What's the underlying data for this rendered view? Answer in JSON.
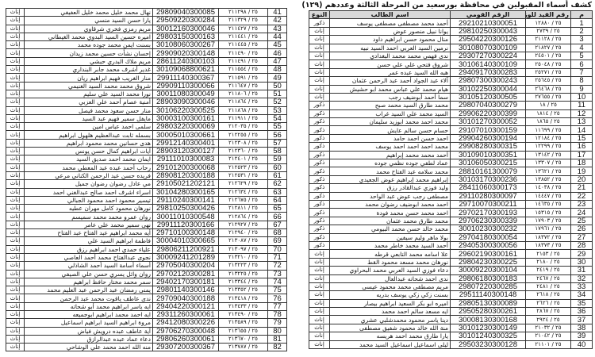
{
  "title": "كشف أسماء المقبولين في محافظة بورسعيد من المرحلة الثالثة وعددهم (١٢٩)",
  "headers": {
    "num": "م",
    "reg": "رقم القيد للوزارة",
    "nid": "الرقم القومي",
    "name": "اسم الطالب",
    "gender": "النوع"
  },
  "right_rows": [
    [
      "1",
      "٢٥ / ١٢٨٨٠",
      "29210210300051",
      "أحمد محمد مصطفى مصطفى يوسف",
      "ذكور"
    ],
    [
      "2",
      "٢٥ / ٢٧٣٩",
      "29810250300043",
      "يوانا نبيل منصور عوض",
      "إناث"
    ],
    [
      "3",
      "٢٥ / ٢١١٢٨",
      "29504220300126",
      "منال محمود حسن ابراهيم داود",
      "إناث"
    ],
    [
      "4",
      "٢٥ / ٢١٨٢٧",
      "30108070300109",
      "نرمين السيد العربي احمد السيد نبيه",
      "إناث"
    ],
    [
      "5",
      "٢٥ / ٢٤٥٠١",
      "29307270300224",
      "ندى فهمي محمد محمد البغدادي",
      "إناث"
    ],
    [
      "6",
      "٢٥ / ٢٥٠٤٨",
      "30106140300109",
      "شروق فتحي علي علي حسن",
      "إناث"
    ],
    [
      "7",
      "٢٥ / ٢٥٢٧١",
      "29409170300283",
      "هبه الله السيد عبده عمر",
      "إناث"
    ],
    [
      "8",
      "٢٥ / ٢٥٦٤٥",
      "29807300300243",
      "آلاء عبد الجواد أحمد عبد الرحمن عثمان",
      "إناث"
    ],
    [
      "9",
      "٢٥ / ٢٦٤٦٨",
      "30102250300044",
      "هيام محمد علي عباس محمد ابو حشيش",
      "إناث"
    ],
    [
      "10",
      "٢٥ / ٢٧٦٥٥",
      "30105120300505",
      "سما أحمد أبوضيف رجب",
      "إناث"
    ],
    [
      "11",
      "٢٥ / ١٨",
      "29807040300279",
      "محمد طارق السيد محمد صبح",
      "ذكور"
    ],
    [
      "12",
      "٢٥ / ١٨١٤",
      "29906220300399",
      "السيد محمد علي السيد غراب",
      "ذكور"
    ],
    [
      "13",
      "٢٥ / ١٨٦٥",
      "30101270300052",
      "محمد احمد محمد ابوزيد سليمان",
      "ذكور"
    ],
    [
      "14",
      "٢٥ / ١١٦٩٩",
      "29107010300159",
      "حسام حسن سالم عايش",
      "ذكور"
    ],
    [
      "15",
      "٢٥ / ١٢١٨٤",
      "29904260300194",
      "احمد حسن احمد حامد",
      "ذكور"
    ],
    [
      "16",
      "٢٥ / ١٢٢٩٩",
      "29908280300315",
      "محمد احمد احمد احمد يوسف",
      "ذكور"
    ],
    [
      "17",
      "٢٥ / ١٣١٤٢",
      "30109010300351",
      "أحمد محمد محمد إبراهيم",
      "ذكور"
    ],
    [
      "18",
      "٢٥ / ١٣٣٠٧",
      "30106050300215",
      "عماد لطفي جوده نظمي جوده",
      "ذكور"
    ],
    [
      "19",
      "٢٥ / ١٣٦٢١",
      "28810161300079",
      "محمد سلامه عبد الفتاح محمد",
      "ذكور"
    ],
    [
      "20",
      "٢٥ / ١٣٨٥٢",
      "30103170300236",
      "إبراهيم محمد إبراهيم عوض الجعيدي",
      "ذكور"
    ],
    [
      "21",
      "٢٥ / ١٤٠٣٨",
      "28411060300173",
      "وليد فوزي عبدالقادر رزق",
      "ذكور"
    ],
    [
      "22",
      "٢٥ / ١٤٤٤٧",
      "29110280300097",
      "مصطفى رجب عوض عبد الواحد",
      "ذكور"
    ],
    [
      "23",
      "٢٥ / ١٤٦٣٥",
      "29710070300211",
      "احمد محمد ابوضيف رضوان محمد",
      "ذكور"
    ],
    [
      "24",
      "٢٥ / ١٥٣١٥",
      "29702170300193",
      "احمد محمد حسن محمد فودة",
      "ذكور"
    ],
    [
      "25",
      "٢٥ / ١٧٩٠٣",
      "29706230300339",
      "محمد طارق محمد عثمان",
      "ذكور"
    ],
    [
      "26",
      "٢٥ / ١٧٩٦١",
      "30010230300232",
      "محمد خالد حسن محمد البيومي",
      "ذكور"
    ],
    [
      "27",
      "٢٥ / ١٨٣٧٢",
      "29704180300054",
      "بولا ماهر وليم سيفين",
      "ذكور"
    ],
    [
      "28",
      "٢٥ / ١٨٣٧٣",
      "29405300300056",
      "أحمد السيد محمد خاطر محمد",
      "ذكور"
    ],
    [
      "29",
      "٢٥ / ٢١٥٣",
      "29602190300161",
      "علا اسامه محمد التابعي قرطه",
      "إناث"
    ],
    [
      "30",
      "٢٥ / ٢١٨٠",
      "29804230300225",
      "نورهان محمد مسعد محمود القط",
      "إناث"
    ],
    [
      "31",
      "٢٥ / ٢٤١٩",
      "30009220300104",
      "دعاء فوزي السيد العربي محمد البحراوي",
      "إناث"
    ],
    [
      "32",
      "٢٥ / ٢٤٦٧",
      "29806180300183",
      "ندى احمد شحاته عبدالعال",
      "إناث"
    ],
    [
      "33",
      "٢٥ / ٢٤٨١",
      "29807220300285",
      "مريم مصطفى محمد محمود عيسى",
      "إناث"
    ],
    [
      "34",
      "٢٥ / ٢٦١٨",
      "29511140300148",
      "بسنت زكي زكي يوسف بدريه",
      "إناث"
    ],
    [
      "35",
      "٢٥ / ٢٦٢٦",
      "29805130300089",
      "اميره ابو بكر السعيد ابراهيم بيصار",
      "إناث"
    ],
    [
      "36",
      "٢٥ / ٢٨٦٧",
      "29505280300261",
      "ايه مسعد سالم احمد محمد",
      "إناث"
    ],
    [
      "37",
      "٢٥ / ٢٩٢٤",
      "30008130300168",
      "دينا ياسر محمود محمدشلبي عشري",
      "إناث"
    ],
    [
      "38",
      "٢٥ / ٢١٠٣٢",
      "30101230300149",
      "منة الله خالد محمود شفيق مصطفى",
      "إناث"
    ],
    [
      "39",
      "٢٥ / ٢١٠٤٢",
      "30101240300325",
      "يارا طارق محمد احمد هريسه",
      "إناث"
    ],
    [
      "40",
      "٢٥ / ٢١١٠١",
      "29503230300128",
      "ليلى اسماعيل اسماعيل السيد محمد",
      "إناث"
    ]
  ],
  "left_rows": [
    [
      "41",
      "٢٥ / ٢١١٢٩٨",
      "29809040300085",
      "نهال محمد خليل محمد خليل العفيفي",
      "إناث"
    ],
    [
      "42",
      "٢٥ / ٢١١٣٢٩",
      "29509220300284",
      "يارا حسن السيد منسي",
      "إناث"
    ],
    [
      "43",
      "٢٥ / ٢١١٤٢٧",
      "30012160300046",
      "مريم رمزي فخري شرقاوي",
      "إناث"
    ],
    [
      "44",
      "٢٥ / ٢١١٤٤١",
      "29803150300163",
      "اميره حسين السيد البدوي محمد الغيطاني",
      "إناث"
    ],
    [
      "45",
      "٢٥ / ٢١١٤٤٥",
      "30108060300267",
      "بسنت ايمن محمد جوده محمد",
      "إناث"
    ],
    [
      "46",
      "٢٥ / ٢١١٤٩٠",
      "29909020300148",
      "إحسان نشأت حسين محمد زيدان",
      "إناث"
    ],
    [
      "47",
      "٢٥ / ٢١١٤٩١",
      "28611240300103",
      "مريم ملاك البدري حبشي",
      "إناث"
    ],
    [
      "48",
      "٢٥ / ٢١١٥٥٤",
      "30109068800621",
      "غدير أشرف محمد جابر البنداري",
      "إناث"
    ],
    [
      "49",
      "٢٥ / ٢١١٥٩١",
      "29911140300367",
      "منار الغريب فهيم ابراهيم ريان",
      "إناث"
    ],
    [
      "50",
      "٢٥ / ٢١١٦٤٧",
      "29909110300066",
      "شروق محمد محمد السيد الغنيمي",
      "إناث"
    ],
    [
      "51",
      "٢٥ / ٢١١٨٠٦",
      "30011080300049",
      "نورا محمد السيد علي سليم",
      "إناث"
    ],
    [
      "52",
      "٢٥ / ٢١١٨٦٤",
      "28903090300046",
      "أمنية عصام أحمد علي العزبي",
      "إناث"
    ],
    [
      "53",
      "٢٥ / ٢١١٨٦٨",
      "30106220300525",
      "منار حسن سعود محمد فيصل",
      "إناث"
    ],
    [
      "54",
      "٢٥ / ٢١١٩١١",
      "30003100300161",
      "مايفل سمير فهيم عبد السيد",
      "إناث"
    ],
    [
      "55",
      "٢٥ / ٢١٢٠٣٥",
      "29803220300069",
      "سلمى احمد عباس امين",
      "إناث"
    ],
    [
      "56",
      "٢٥ / ٢١٢٢٥٥",
      "30005010300661",
      "بسمله ثابت عبدالعظيم هلهول ابراهيم",
      "إناث"
    ],
    [
      "57",
      "٢٥ / ٢١٢٣٠٨",
      "29912140300401",
      "هدى حسانين محمد محمود ابراهيم",
      "إناث"
    ],
    [
      "58",
      "٢٥ / ٢١٢٣٦٠",
      "28903120300127",
      "آيات ابراهيم كمال حسن يونس",
      "إناث"
    ],
    [
      "59",
      "٢٥ / ٢١٢٤٠١",
      "29111010300083",
      "ايمان محمد احمد صديق السيد",
      "إناث"
    ],
    [
      "60",
      "٢٥ / ٢١٢٥٢٣",
      "29101200300068",
      "رحاب أحمد عبده عبد المعطي محمد",
      "إناث"
    ],
    [
      "61",
      "٢٥ / ٢١٢٥٣١",
      "28908120300188",
      "فريده حسن عبد الرحمن الكناني مرعي",
      "إناث"
    ],
    [
      "62",
      "٢٥ / ٢١٢٦٢٩",
      "29105021202121",
      "مي عادل رضوان رضوان جميل",
      "إناث"
    ],
    [
      "63",
      "٢٥ / ٢١٢٦٣٤",
      "30104280300165",
      "اسراء اشرف احمد صالح عبدالغني احمد",
      "إناث"
    ],
    [
      "64",
      "٢٥ / ٢١٢٦٧٥",
      "29110240300141",
      "تيسير محمود احمد محمود الجبالي",
      "إناث"
    ],
    [
      "65",
      "٢٥ / ٢١٢٨١١",
      "29810250300426",
      "نورهان محمود كامل مهران عطيه",
      "إناث"
    ],
    [
      "66",
      "٢٥ / ٢١٢٨٦٤",
      "30011010300548",
      "روان عمرو محمد محمد سميسم",
      "إناث"
    ],
    [
      "67",
      "٢٥ / ٢١٢٩٢٧",
      "29911120300166",
      "نهى سمير محمد علي عامر",
      "إناث"
    ],
    [
      "68",
      "٢٥ / ٢١٢٩٤٠",
      "29710100300148",
      "أيه محمد ابراهيم عبد الفتاح عبد الفتاح",
      "إناث"
    ],
    [
      "69",
      "٢٥ / ٢١٣٠٨٧",
      "30004010300665",
      "فاطمة ابراهيم السيد علي",
      "إناث"
    ],
    [
      "70",
      "٢٥ / ٢١٣٠٩٧",
      "29806211200921",
      "علياء حمدي احمد ابراهيم رزق",
      "إناث"
    ],
    [
      "71",
      "٢٥ / ٢١٣٢١٠",
      "30009241201289",
      "نجوى عبدالفتاح محمد أحمد العاصي",
      "إناث"
    ],
    [
      "72",
      "٢٥ / ٢١٣٢٢٣",
      "29705040300204",
      "أسماء أسامة السيد أحمد الشاذلي",
      "إناث"
    ],
    [
      "73",
      "٢٥ / ٢١٣٢٢٥",
      "29702120300281",
      "روان وائل يسري حسن علي الصيفي",
      "إناث"
    ],
    [
      "74",
      "٢٥ / ٢١٣٣٤٤",
      "29402170300181",
      "سمر محمد مختار حافظ ابراهيم",
      "إناث"
    ],
    [
      "75",
      "٢٥ / ٢١٣٣٥٢",
      "29801140300146",
      "يمنى رمضان عبد الرحمن عبد العليم محمد",
      "إناث"
    ],
    [
      "76",
      "٢٥ / ٢١٣٤١٨",
      "29709040300188",
      "ندى عاطف ياقوت محمد عبد الرحمن",
      "إناث"
    ],
    [
      "77",
      "٢٥ / ٢١٣٤٣٣",
      "29404220300121",
      "ايه ياسر ابراهيم محمد أبو شحاته",
      "إناث"
    ],
    [
      "78",
      "٢٥ / ٢١٣٤٩٠",
      "29311260300061",
      "ايه احمد محمد ابراهيم ابوجميعه",
      "إناث"
    ],
    [
      "79",
      "٢٥ / ٢١٣٥٨٩",
      "29412080300226",
      "مروة ابراهيم السيد ابراهيم اسماعيل",
      "إناث"
    ],
    [
      "80",
      "٢٥ / ٢١٣٦٥٥",
      "29706270300048",
      "آية عاطف عبده درويش فياض",
      "إناث"
    ],
    [
      "81",
      "٢٥ / ٢١٣٦٧٠",
      "29806260300061",
      "دعاء عماد عبده عبدالرازق",
      "إناث"
    ],
    [
      "82",
      "٢٥ / ٢١٣٧٨٧",
      "29307200300367",
      "منه الله احمد محمد علي الوشاحي",
      "إناث"
    ]
  ]
}
